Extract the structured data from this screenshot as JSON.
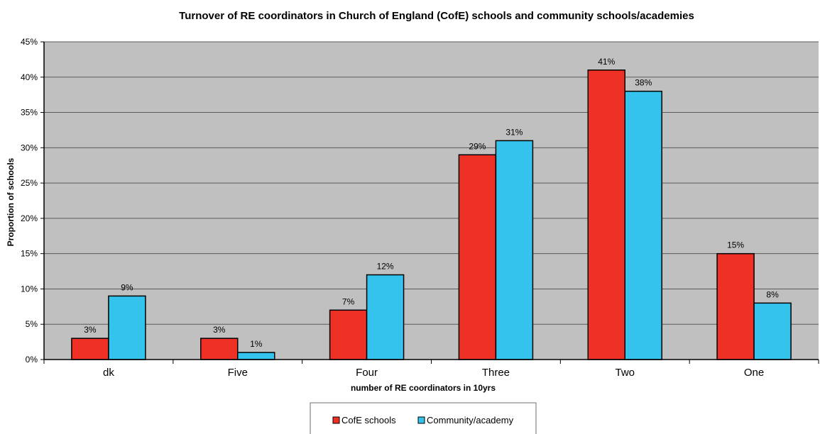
{
  "chart_data": {
    "type": "bar",
    "title": "Turnover of RE coordinators in Church of England (CofE) schools and community schools/academies",
    "xlabel": "number of RE coordinators in 10yrs",
    "ylabel": "Proportion of schools",
    "categories": [
      "dk",
      "Five",
      "Four",
      "Three",
      "Two",
      "One"
    ],
    "series": [
      {
        "name": "CofE schools",
        "values": [
          3,
          3,
          7,
          29,
          41,
          15
        ],
        "labels": [
          "3%",
          "3%",
          "7%",
          "29%",
          "41%",
          "15%"
        ],
        "color": "#ee3124"
      },
      {
        "name": "Community/academy",
        "values": [
          9,
          1,
          12,
          31,
          38,
          8
        ],
        "labels": [
          "9%",
          "1%",
          "12%",
          "31%",
          "38%",
          "8%"
        ],
        "color": "#33c3ec"
      }
    ],
    "ylim": [
      0,
      45
    ],
    "yticks": [
      0,
      5,
      10,
      15,
      20,
      25,
      30,
      35,
      40,
      45
    ],
    "ytick_labels": [
      "0%",
      "5%",
      "10%",
      "15%",
      "20%",
      "25%",
      "30%",
      "35%",
      "40%",
      "45%"
    ],
    "grid": true,
    "plot_background": "#c0c0c0",
    "legend_position": "bottom"
  }
}
